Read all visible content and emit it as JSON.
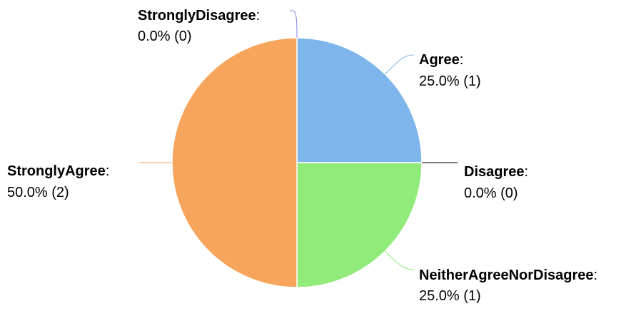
{
  "chart_data": {
    "type": "pie",
    "slices": [
      {
        "label": "Agree",
        "value": 1,
        "percent_text": "25.0% (1)",
        "color": "#7EB5EB"
      },
      {
        "label": "Disagree",
        "value": 0,
        "percent_text": "0.0% (0)",
        "color": "#000000"
      },
      {
        "label": "NeitherAgreeNorDisagree",
        "value": 1,
        "percent_text": "25.0% (1)",
        "color": "#90EB7B"
      },
      {
        "label": "StronglyAgree",
        "value": 2,
        "percent_text": "50.0% (2)",
        "color": "#F7A45C"
      },
      {
        "label": "StronglyDisagree",
        "value": 0,
        "percent_text": "0.0% (0)",
        "color": "#8085E9"
      }
    ],
    "label_separator": ":"
  }
}
